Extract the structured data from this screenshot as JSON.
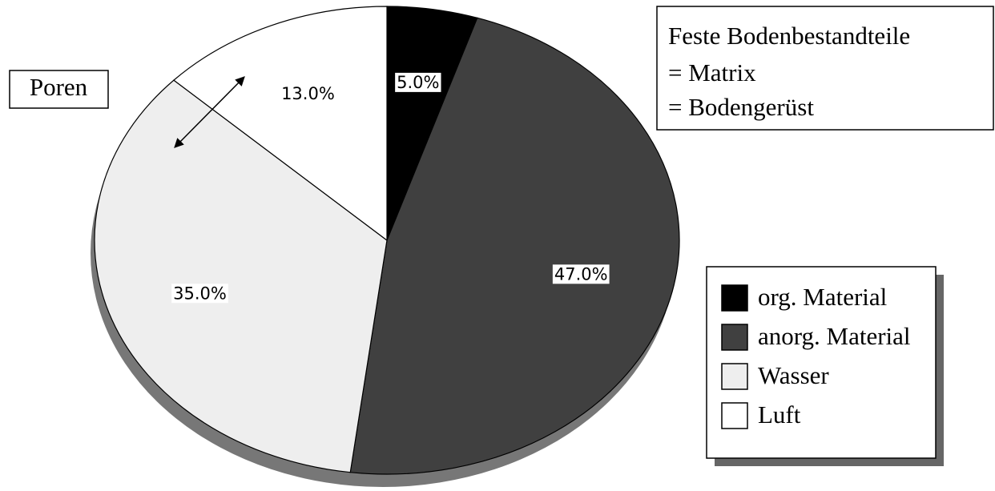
{
  "chart_data": {
    "type": "pie",
    "categories": [
      "org. Material",
      "anorg. Material",
      "Wasser",
      "Luft"
    ],
    "values": [
      5,
      47,
      35,
      13
    ],
    "value_labels": [
      "5.0%",
      "47.0%",
      "35.0%",
      "13.0%"
    ],
    "colors": [
      "#000000",
      "#404040",
      "#eeeeee",
      "#ffffff"
    ],
    "legend": "right",
    "annotations": [
      "Poren",
      "Feste Bodenbestandteile",
      "= Matrix",
      "= Bodengerüst"
    ]
  }
}
